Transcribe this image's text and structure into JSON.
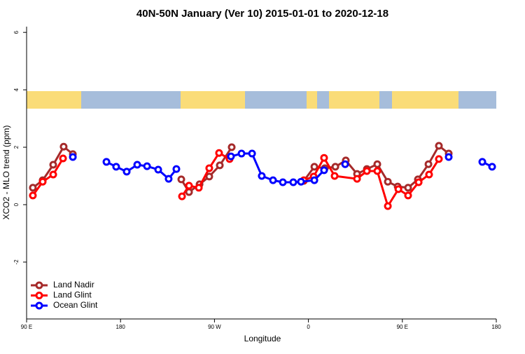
{
  "chart_data": {
    "type": "line",
    "title": "40N-50N January (Ver 10)   2015-01-01 to 2020-12-18",
    "x_label": "Longitude",
    "y_label": "XCO2 - MLO trend (ppm)",
    "xlim": [
      90,
      540
    ],
    "xticks": [
      {
        "value": 90,
        "label": "90 E"
      },
      {
        "value": 180,
        "label": "180"
      },
      {
        "value": 270,
        "label": "90 W"
      },
      {
        "value": 360,
        "label": "0"
      },
      {
        "value": 450,
        "label": "90 E"
      },
      {
        "value": 540,
        "label": "180"
      }
    ],
    "ylim": [
      -3.98,
      6.2
    ],
    "yticks": [
      -2,
      0,
      2,
      4,
      6
    ],
    "legend": "bottom-left",
    "series": [
      {
        "name": "Land Nadir",
        "color": "#a52a2a",
        "x": [
          96,
          105.4,
          115.5,
          125.5,
          134.3,
          null,
          238.2,
          245.6,
          255.7,
          265,
          275.1,
          286.5,
          null,
          355.6,
          365.7,
          375.7,
          385.8,
          395.8,
          406.6,
          416,
          426,
          436.1,
          445.5,
          455.5,
          464.9,
          475,
          485,
          494.4
        ],
        "values": [
          0.59,
          0.85,
          1.39,
          2.02,
          1.76,
          null,
          0.88,
          0.44,
          0.71,
          0.98,
          1.37,
          2.0,
          null,
          0.83,
          1.32,
          1.27,
          1.32,
          1.54,
          1.07,
          1.24,
          1.41,
          0.8,
          0.63,
          0.59,
          0.88,
          1.41,
          2.05,
          1.78
        ]
      },
      {
        "name": "Land Glint",
        "color": "#ff0000",
        "x": [
          96,
          105.4,
          115.5,
          124.9,
          null,
          238.9,
          245.6,
          255,
          265,
          274.4,
          284.5,
          null,
          355.6,
          365,
          375,
          385.1,
          406.6,
          416,
          426,
          436.1,
          446.2,
          455.5,
          465.6,
          475.6,
          485
        ],
        "values": [
          0.32,
          0.8,
          1.05,
          1.61,
          null,
          0.29,
          0.66,
          0.59,
          1.27,
          1.8,
          1.59,
          null,
          0.85,
          0.98,
          1.63,
          1.0,
          0.9,
          1.17,
          1.17,
          -0.05,
          0.54,
          0.32,
          0.78,
          1.05,
          1.59
        ]
      },
      {
        "name": "Ocean Glint",
        "color": "#0000ff",
        "x": [
          134.3,
          null,
          166.5,
          175.8,
          185.9,
          196,
          205.4,
          216.1,
          226.1,
          233.5,
          null,
          285.8,
          295.9,
          306,
          315.3,
          326.1,
          335.5,
          345.5,
          352.9,
          365.7,
          375,
          null,
          395.2,
          null,
          494.4,
          null,
          526.6,
          536
        ],
        "values": [
          1.66,
          null,
          1.49,
          1.32,
          1.15,
          1.39,
          1.34,
          1.22,
          0.9,
          1.24,
          null,
          1.68,
          1.78,
          1.78,
          1.0,
          0.85,
          0.78,
          0.78,
          0.8,
          0.85,
          1.2,
          null,
          1.41,
          null,
          1.66,
          null,
          1.49,
          1.32
        ]
      }
    ]
  }
}
